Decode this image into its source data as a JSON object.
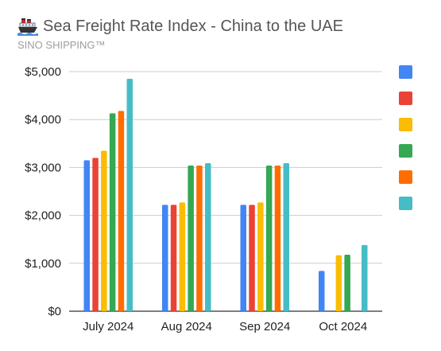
{
  "header": {
    "title": "Sea Freight Rate Index - China to the UAE",
    "subtitle": "SINO SHIPPING™",
    "title_icon": "ship-icon"
  },
  "chart_data": {
    "type": "bar",
    "title": "Sea Freight Rate Index - China to the UAE",
    "subtitle": "SINO SHIPPING™",
    "categories": [
      "July 2024",
      "Aug 2024",
      "Sep 2024",
      "Oct 2024"
    ],
    "y_tick_labels": [
      "$0",
      "$1,000",
      "$2,000",
      "$3,000",
      "$4,000",
      "$5,000"
    ],
    "ylim": [
      0,
      5000
    ],
    "grid": true,
    "legend_position": "right",
    "colors": [
      "#4285F4",
      "#EA4335",
      "#FBBC04",
      "#34A853",
      "#FF6D01",
      "#46BDC6"
    ],
    "series": [
      {
        "values": [
          3150,
          2220,
          2220,
          840
        ]
      },
      {
        "values": [
          3200,
          2220,
          2220,
          null
        ]
      },
      {
        "values": [
          3350,
          2270,
          2270,
          1170
        ]
      },
      {
        "values": [
          4130,
          3040,
          3040,
          1180
        ]
      },
      {
        "values": [
          4180,
          3040,
          3040,
          null
        ]
      },
      {
        "values": [
          4850,
          3090,
          3090,
          1380
        ]
      }
    ]
  }
}
